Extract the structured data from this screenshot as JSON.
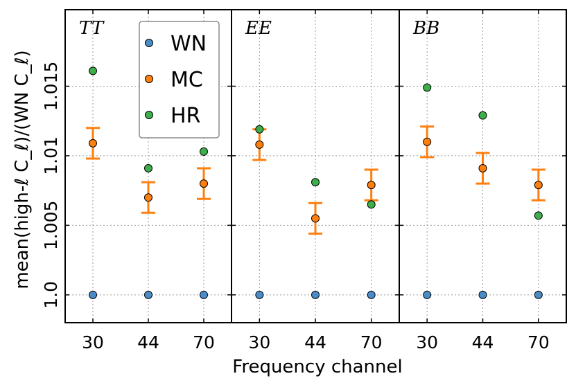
{
  "chart_data": {
    "type": "scatter",
    "ylabel": "mean(high-ℓ C_ℓ)/(WN C_ℓ)",
    "xlabel": "Frequency channel",
    "categories": [
      "30",
      "44",
      "70"
    ],
    "yticks": [
      "1.0",
      "1.005",
      "1.01",
      "1.015"
    ],
    "ytick_values": [
      1.0,
      1.005,
      1.01,
      1.015
    ],
    "ylim": [
      0.998,
      1.0205
    ],
    "grid": true,
    "legend_position": "top-left of first panel",
    "legend": [
      {
        "name": "WN",
        "color": "#4a8cc8"
      },
      {
        "name": "MC",
        "color": "#ff7f0e"
      },
      {
        "name": "HR",
        "color": "#3cae4a"
      }
    ],
    "panels": [
      {
        "title": "TT",
        "WN": [
          1.0,
          1.0,
          1.0
        ],
        "MC": [
          1.0109,
          1.007,
          1.008
        ],
        "MC_err": [
          0.0011,
          0.0011,
          0.0011
        ],
        "HR": [
          1.0161,
          1.0091,
          1.0103
        ]
      },
      {
        "title": "EE",
        "WN": [
          1.0,
          1.0,
          1.0
        ],
        "MC": [
          1.0108,
          1.0055,
          1.0079
        ],
        "MC_err": [
          0.0011,
          0.0011,
          0.0011
        ],
        "HR": [
          1.0119,
          1.0081,
          1.0065
        ]
      },
      {
        "title": "BB",
        "WN": [
          1.0,
          1.0,
          1.0
        ],
        "MC": [
          1.011,
          1.0091,
          1.0079
        ],
        "MC_err": [
          0.0011,
          0.0011,
          0.0011
        ],
        "HR": [
          1.0149,
          1.0129,
          1.0057
        ]
      }
    ]
  }
}
